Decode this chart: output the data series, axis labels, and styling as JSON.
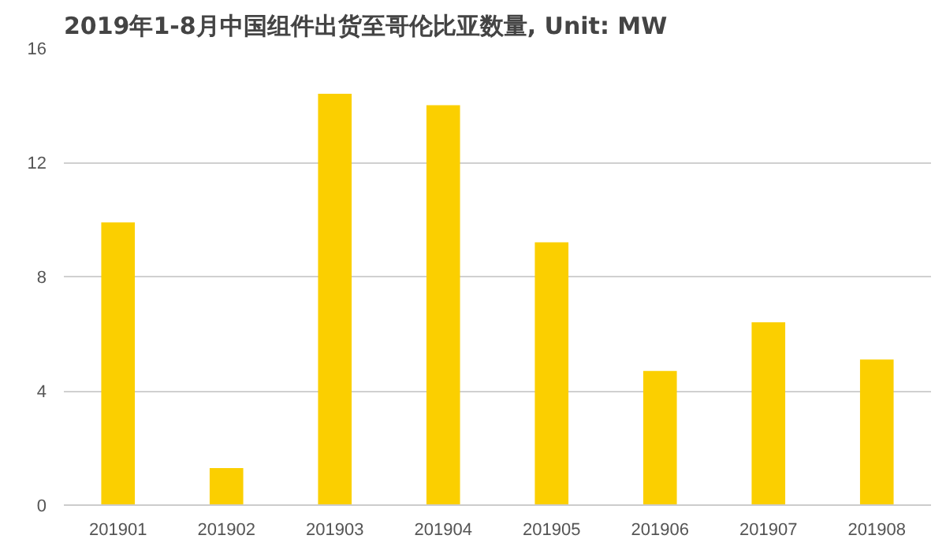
{
  "chart_data": {
    "type": "bar",
    "title": "2019年1-8月中国组件出货至哥伦比亚数量, Unit: MW",
    "categories": [
      "201901",
      "201902",
      "201903",
      "201904",
      "201905",
      "201906",
      "201907",
      "201908"
    ],
    "values": [
      9.9,
      1.3,
      14.4,
      14.0,
      9.2,
      4.7,
      6.4,
      5.1
    ],
    "color": "#fbcf00",
    "ylim": [
      0,
      16
    ],
    "yticks": [
      0,
      4,
      8,
      12,
      16
    ],
    "grid": "y"
  }
}
